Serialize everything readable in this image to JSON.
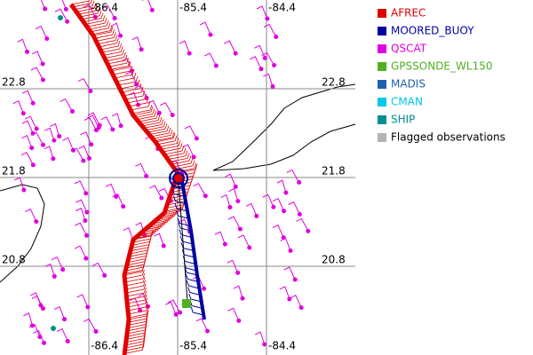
{
  "map": {
    "lon_labels": [
      "-86.4",
      "-85.4",
      "-84.4"
    ],
    "lat_labels": [
      "22.8",
      "21.8",
      "20.8"
    ],
    "legend": [
      {
        "label": "AFREC",
        "color": "#e00000"
      },
      {
        "label": "MOORED_BUOY",
        "color": "#0000a0"
      },
      {
        "label": "QSCAT",
        "color": "#e000e0"
      },
      {
        "label": "GPSSONDE_WL150",
        "color": "#50b020"
      },
      {
        "label": "MADIS",
        "color": "#2060b0"
      },
      {
        "label": "CMAN",
        "color": "#00c8e8"
      },
      {
        "label": "SHIP",
        "color": "#009090"
      },
      {
        "label": "Flagged observations",
        "color": "#b4b4b4"
      }
    ]
  }
}
